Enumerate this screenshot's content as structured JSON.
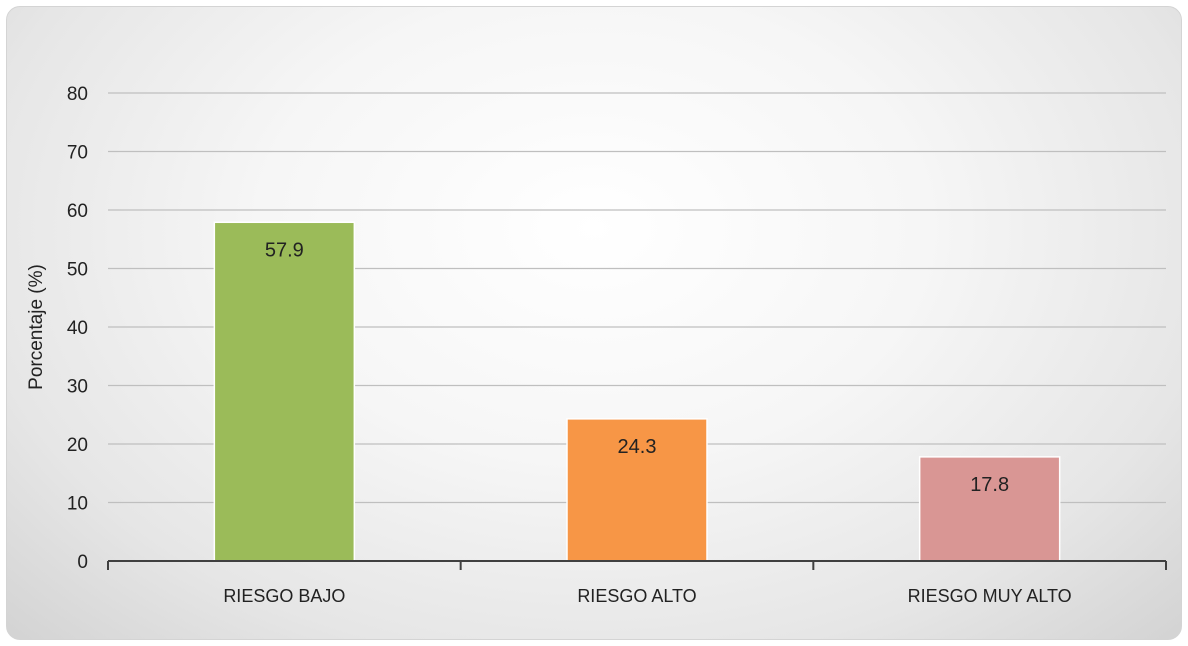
{
  "chart_data": {
    "type": "bar",
    "categories": [
      "RIESGO BAJO",
      "RIESGO ALTO",
      "RIESGO MUY ALTO"
    ],
    "values": [
      57.9,
      24.3,
      17.8
    ],
    "data_labels": [
      "57.9",
      "24.3",
      "17.8"
    ],
    "colors": [
      "#9bbb59",
      "#f79646",
      "#d99694"
    ],
    "title": "",
    "xlabel": "",
    "ylabel": "Porcentaje (%)",
    "ylim": [
      0,
      80
    ],
    "yticks": [
      0,
      10,
      20,
      30,
      40,
      50,
      60,
      70,
      80
    ],
    "grid": true,
    "legend": "none"
  }
}
